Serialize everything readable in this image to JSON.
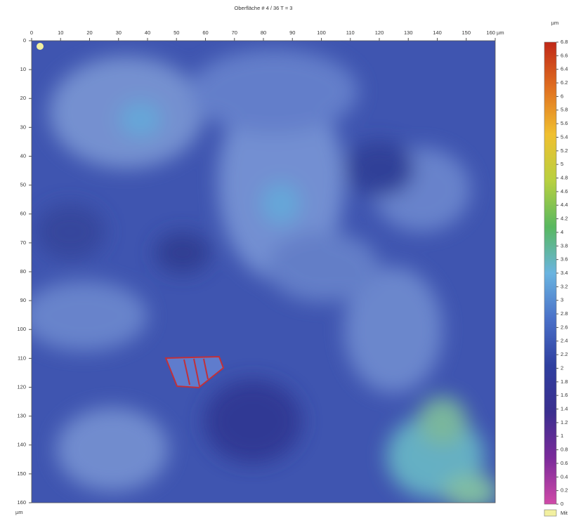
{
  "chart_data": {
    "type": "surface-map",
    "title": "Oberfläche # 4 / 36 T = 3",
    "xlim": [
      0,
      160
    ],
    "xticks": [
      0,
      10,
      20,
      30,
      40,
      50,
      60,
      70,
      80,
      90,
      100,
      110,
      120,
      130,
      140,
      150,
      {
        "value": 160,
        "label": "160 µm"
      }
    ],
    "ylim": [
      0,
      160
    ],
    "yticks": [
      0,
      10,
      20,
      30,
      40,
      50,
      60,
      70,
      80,
      90,
      100,
      110,
      120,
      130,
      140,
      150,
      160
    ],
    "ylabel": "µm",
    "colorbar": {
      "label": "µm",
      "lim": [
        0,
        6.8
      ],
      "ticks": [
        0,
        0.2,
        0.4,
        0.6,
        0.8,
        1,
        1.2,
        1.4,
        1.6,
        1.8,
        2,
        2.2,
        2.4,
        2.6,
        2.8,
        3,
        3.2,
        3.4,
        3.6,
        3.8,
        4,
        4.2,
        4.4,
        4.6,
        4.8,
        5,
        5.2,
        5.4,
        5.6,
        5.8,
        6,
        6.2,
        6.4,
        6.6,
        6.8
      ],
      "colors": [
        "#d04aa8",
        "#7a2a9a",
        "#3a2f8f",
        "#2f3f9f",
        "#4a70c8",
        "#6ab4e0",
        "#58b860",
        "#b8d040",
        "#f0c030",
        "#e07020",
        "#c02818"
      ],
      "missing_label": "Mit",
      "missing_color": "#f2f0a0"
    }
  }
}
